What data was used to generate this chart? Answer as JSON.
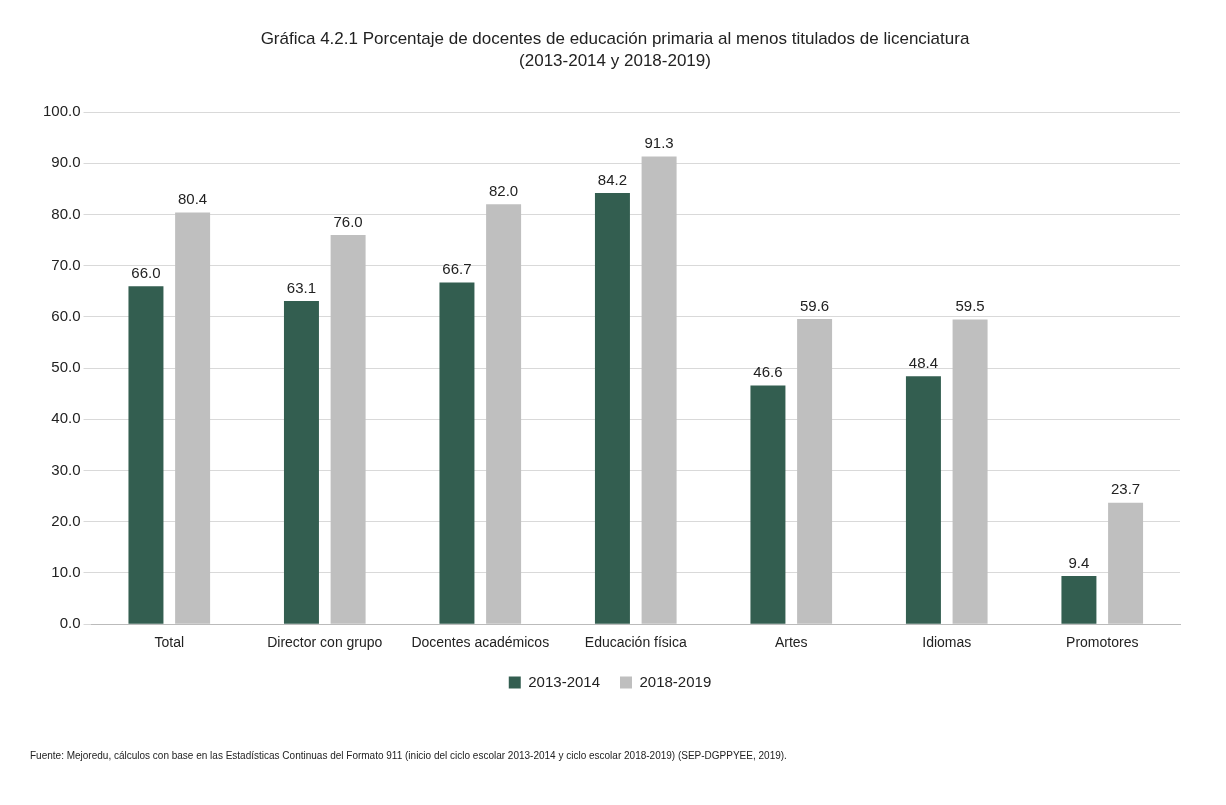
{
  "chart_data": {
    "type": "bar",
    "title": "Gráfica 4.2.1 Porcentaje de docentes de educación primaria al menos titulados de licenciatura",
    "subtitle": "(2013-2014 y 2018-2019)",
    "categories": [
      "Total",
      "Director con grupo",
      "Docentes académicos",
      "Educación física",
      "Artes",
      "Idiomas",
      "Promotores"
    ],
    "series": [
      {
        "name": "2013-2014",
        "color": "#335e50",
        "values": [
          66.0,
          63.1,
          66.7,
          84.2,
          46.6,
          48.4,
          9.4
        ],
        "value_labels": [
          "66.0",
          "63.1",
          "66.7",
          "84.2",
          "46.6",
          "48.4",
          "9.4"
        ]
      },
      {
        "name": "2018-2019",
        "color": "#bfbfbf",
        "values": [
          80.4,
          76.0,
          82.0,
          91.3,
          59.6,
          59.5,
          23.7
        ],
        "value_labels": [
          "80.4",
          "76.0",
          "82.0",
          "91.3",
          "59.6",
          "59.5",
          "23.7"
        ]
      }
    ],
    "ylim": [
      0,
      100
    ],
    "yticks": [
      {
        "value": 0,
        "label": "0.0"
      },
      {
        "value": 10,
        "label": "10.0"
      },
      {
        "value": 20,
        "label": "20.0"
      },
      {
        "value": 30,
        "label": "30.0"
      },
      {
        "value": 40,
        "label": "40.0"
      },
      {
        "value": 50,
        "label": "50.0"
      },
      {
        "value": 60,
        "label": "60.0"
      },
      {
        "value": 70,
        "label": "70.0"
      },
      {
        "value": 80,
        "label": "80.0"
      },
      {
        "value": 90,
        "label": "90.0"
      },
      {
        "value": 100,
        "label": "100.0"
      }
    ],
    "grid": "y",
    "legend": "bottom",
    "annotations": [
      "Fuente: Mejoredu, cálculos con base en las Estadísticas Continuas del Formato 911 (inicio del ciclo escolar 2013-2014 y ciclo escolar 2018-2019) (SEP-DGPPYEE, 2019)."
    ]
  }
}
